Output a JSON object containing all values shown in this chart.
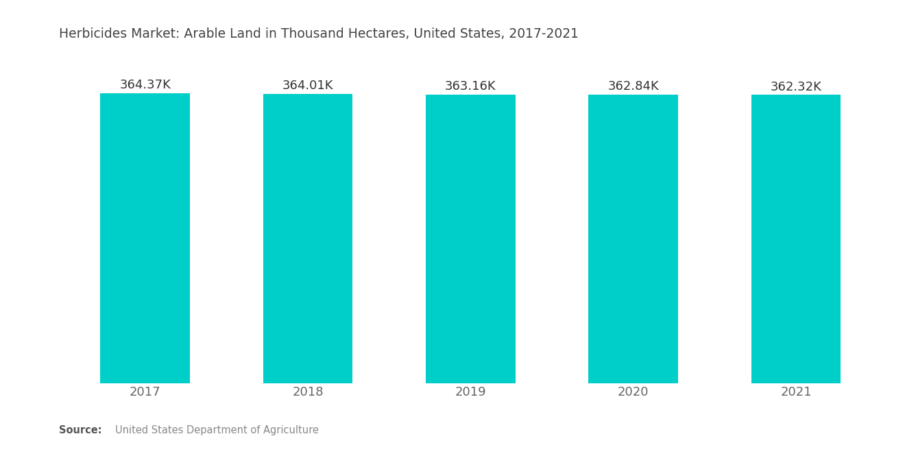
{
  "title": "Herbicides Market: Arable Land in Thousand Hectares, United States, 2017-2021",
  "categories": [
    "2017",
    "2018",
    "2019",
    "2020",
    "2021"
  ],
  "values": [
    364.37,
    364.01,
    363.16,
    362.84,
    362.32
  ],
  "labels": [
    "364.37K",
    "364.01K",
    "363.16K",
    "362.84K",
    "362.32K"
  ],
  "bar_color": "#00CEC9",
  "background_color": "#FFFFFF",
  "title_fontsize": 13.5,
  "label_fontsize": 13,
  "tick_fontsize": 13,
  "source_bold": "Source:",
  "source_text": "United States Department of Agriculture",
  "ylim_min": 0,
  "ylim_max": 390,
  "title_color": "#444444",
  "tick_color": "#666666",
  "label_color": "#333333",
  "bar_width": 0.55
}
